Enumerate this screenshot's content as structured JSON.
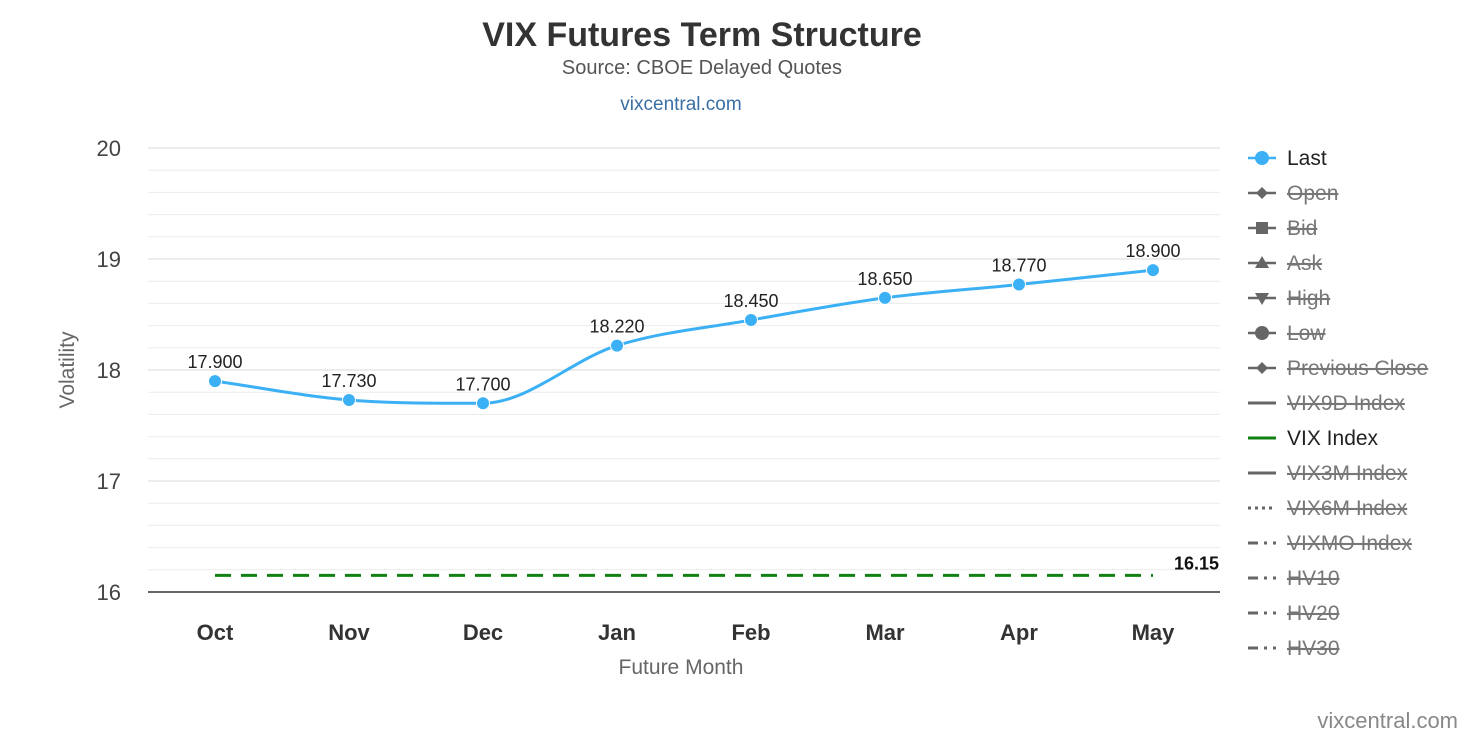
{
  "chart_data": {
    "type": "line",
    "title": "VIX Futures Term Structure",
    "subtitle": "Source: CBOE Delayed Quotes",
    "link_text": "vixcentral.com",
    "credit": "vixcentral.com",
    "xlabel": "Future Month",
    "ylabel": "Volatility",
    "categories": [
      "Oct",
      "Nov",
      "Dec",
      "Jan",
      "Feb",
      "Mar",
      "Apr",
      "May"
    ],
    "ylim": [
      16,
      20
    ],
    "yticks": [
      "16",
      "17",
      "18",
      "19",
      "20"
    ],
    "grid": true,
    "legend_position": "right",
    "series": [
      {
        "name": "Last",
        "values": [
          17.9,
          17.73,
          17.7,
          18.22,
          18.45,
          18.65,
          18.77,
          18.9
        ],
        "labels": [
          "17.900",
          "17.730",
          "17.700",
          "18.220",
          "18.450",
          "18.650",
          "18.770",
          "18.900"
        ],
        "color": "#3cb0f5"
      },
      {
        "name": "VIX Index",
        "value": 16.15,
        "value_label": "16.15",
        "color": "#138013",
        "style": "dashed"
      }
    ],
    "legend": [
      {
        "name": "Last",
        "symbol": "circle",
        "hidden": false
      },
      {
        "name": "Open",
        "symbol": "diamond",
        "hidden": true
      },
      {
        "name": "Bid",
        "symbol": "square",
        "hidden": true
      },
      {
        "name": "Ask",
        "symbol": "triangle-up",
        "hidden": true
      },
      {
        "name": "High",
        "symbol": "triangle-down",
        "hidden": true
      },
      {
        "name": "Low",
        "symbol": "circle",
        "hidden": true
      },
      {
        "name": "Previous Close",
        "symbol": "diamond",
        "hidden": true
      },
      {
        "name": "VIX9D Index",
        "symbol": "solid",
        "hidden": true
      },
      {
        "name": "VIX Index",
        "symbol": "solid",
        "hidden": false,
        "color": "#138013"
      },
      {
        "name": "VIX3M Index",
        "symbol": "solid",
        "hidden": true
      },
      {
        "name": "VIX6M Index",
        "symbol": "dotted",
        "hidden": true
      },
      {
        "name": "VIXMO Index",
        "symbol": "dashdot",
        "hidden": true
      },
      {
        "name": "HV10",
        "symbol": "dashdot",
        "hidden": true
      },
      {
        "name": "HV20",
        "symbol": "dashdot",
        "hidden": true
      },
      {
        "name": "HV30",
        "symbol": "dashdot",
        "hidden": true
      }
    ]
  }
}
